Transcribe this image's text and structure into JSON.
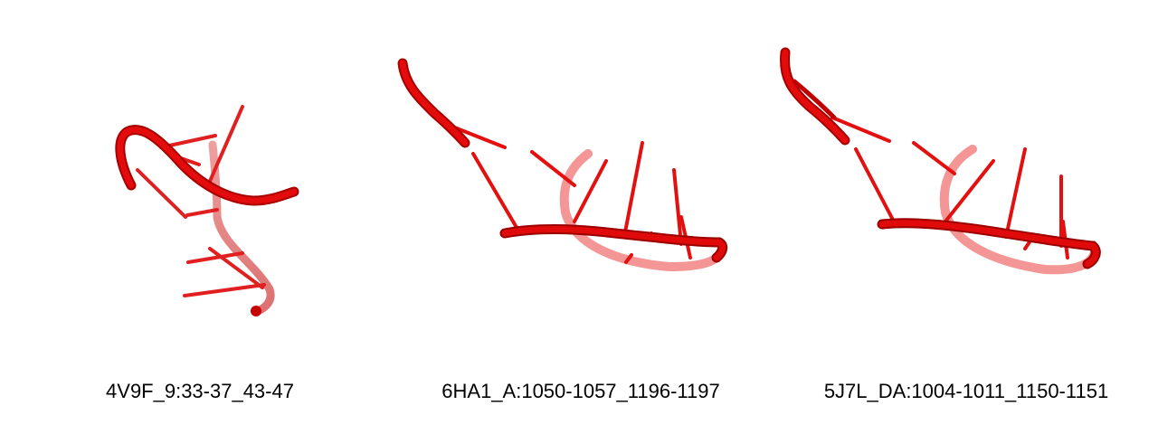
{
  "panels": [
    {
      "label": "4V9F_9:33-37_43-47"
    },
    {
      "label": "6HA1_A:1050-1057_1196-1197"
    },
    {
      "label": "5J7L_DA:1004-1011_1150-1151"
    }
  ],
  "colors": {
    "backbone": "#e00000",
    "backbone_dark": "#a00000",
    "backbone_light": "#f07070"
  }
}
